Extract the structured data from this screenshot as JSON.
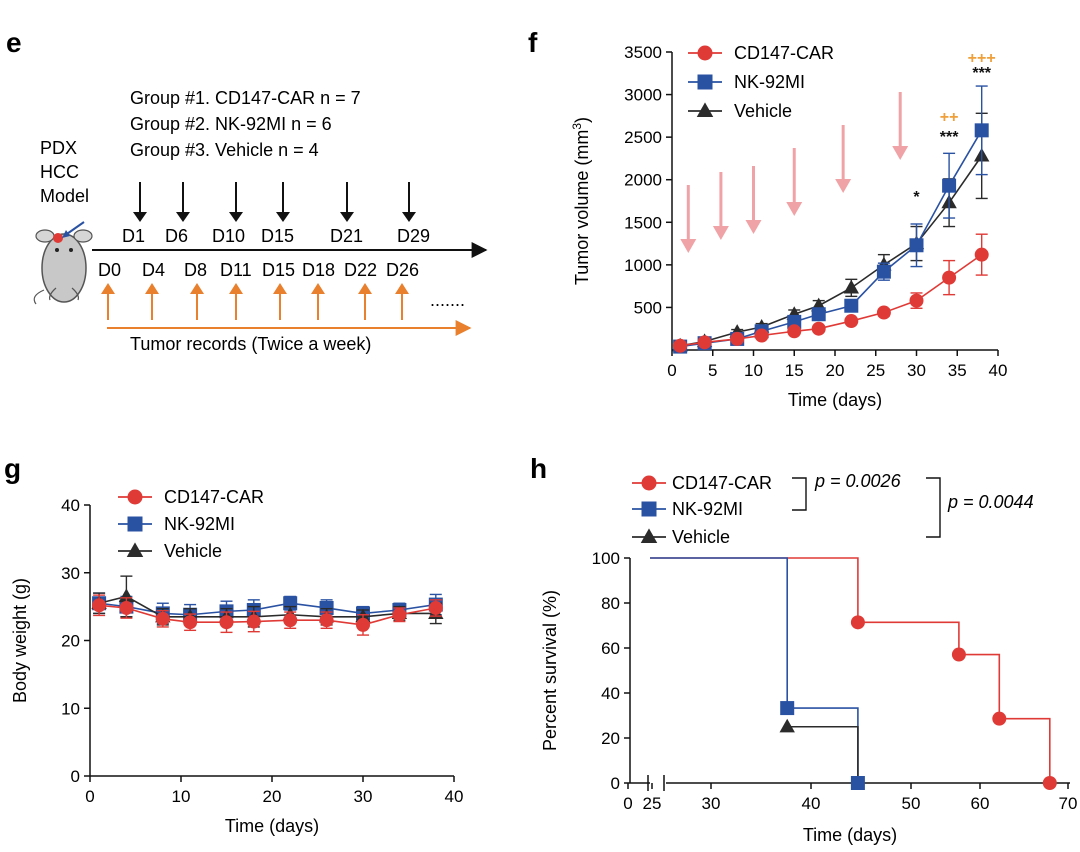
{
  "colors": {
    "car": "#e03a36",
    "nk": "#2a52a3",
    "vehicle": "#2b2b2b",
    "dose": "#f0a3a6",
    "record": "#e8802e",
    "sig_orange": "#f0a03a"
  },
  "panel_e": {
    "label": "e",
    "groups": [
      "Group #1. CD147-CAR n = 7",
      "Group #2. NK-92MI n = 6",
      "Group #3. Vehicle n = 4"
    ],
    "model_lines": [
      "PDX",
      "HCC",
      "Model"
    ],
    "dose_days": [
      "D1",
      "D6",
      "D10",
      "D15",
      "D21",
      "D29"
    ],
    "record_days": [
      "D0",
      "D4",
      "D8",
      "D11",
      "D15",
      "D18",
      "D22",
      "D26"
    ],
    "ellipsis": ".......",
    "record_caption": "Tumor records (Twice a week)"
  },
  "chart_data": [
    {
      "panel": "f",
      "type": "line",
      "ylabel": "Tumor volume (mm3)",
      "xlabel": "Time (days)",
      "xlim": [
        0,
        40
      ],
      "ylim": [
        0,
        3500
      ],
      "xticks": [
        "0",
        "5",
        "10",
        "15",
        "20",
        "25",
        "30",
        "35",
        "40"
      ],
      "yticks": [
        "500",
        "1000",
        "1500",
        "2000",
        "2500",
        "3000",
        "3500"
      ],
      "legend": [
        "CD147-CAR",
        "NK-92MI",
        "Vehicle"
      ],
      "legend_position": "top-left",
      "series": [
        {
          "name": "CD147-CAR",
          "x": [
            1,
            4,
            8,
            11,
            15,
            18,
            22,
            26,
            30,
            34,
            38
          ],
          "y": [
            50,
            90,
            130,
            170,
            220,
            250,
            340,
            440,
            580,
            850,
            1120
          ],
          "err": [
            20,
            20,
            20,
            20,
            30,
            30,
            30,
            40,
            90,
            200,
            240
          ]
        },
        {
          "name": "NK-92MI",
          "x": [
            1,
            4,
            8,
            11,
            15,
            18,
            22,
            26,
            30,
            34,
            38
          ],
          "y": [
            40,
            80,
            130,
            220,
            330,
            420,
            520,
            920,
            1230,
            1930,
            2580
          ],
          "err": [
            20,
            20,
            20,
            30,
            40,
            40,
            60,
            100,
            250,
            380,
            520
          ]
        },
        {
          "name": "Vehicle",
          "x": [
            1,
            4,
            8,
            11,
            15,
            18,
            22,
            26,
            30,
            34,
            38
          ],
          "y": [
            50,
            100,
            210,
            270,
            420,
            520,
            730,
            1000,
            1250,
            1730,
            2280
          ],
          "err": [
            20,
            20,
            30,
            40,
            50,
            60,
            100,
            120,
            200,
            280,
            500
          ]
        }
      ],
      "dose_arrow_days": [
        2,
        6,
        10,
        15,
        21,
        28
      ],
      "annotations": [
        {
          "x": 30,
          "text": "*",
          "color": "#111111",
          "level": 1
        },
        {
          "x": 34,
          "text": "***",
          "color": "#111111",
          "level": 1
        },
        {
          "x": 34,
          "text": "++",
          "color": "#f0a03a",
          "level": 2
        },
        {
          "x": 38,
          "text": "***",
          "color": "#111111",
          "level": 1
        },
        {
          "x": 38,
          "text": "+++",
          "color": "#f0a03a",
          "level": 2
        }
      ]
    },
    {
      "panel": "g",
      "type": "line",
      "ylabel": "Body weight (g)",
      "xlabel": "Time (days)",
      "xlim": [
        0,
        40
      ],
      "ylim": [
        0,
        40
      ],
      "xticks": [
        "0",
        "10",
        "20",
        "30",
        "40"
      ],
      "yticks": [
        "0",
        "10",
        "20",
        "30",
        "40"
      ],
      "legend": [
        "CD147-CAR",
        "NK-92MI",
        "Vehicle"
      ],
      "legend_position": "top-left",
      "series": [
        {
          "name": "NK-92MI",
          "x": [
            1,
            4,
            8,
            11,
            15,
            18,
            22,
            26,
            30,
            34,
            38
          ],
          "y": [
            25.5,
            25.0,
            24.0,
            23.8,
            24.3,
            24.5,
            25.5,
            24.8,
            24.0,
            24.5,
            25.3
          ],
          "err": [
            1.5,
            1.5,
            1.5,
            1.5,
            1.5,
            1.5,
            1.0,
            1.2,
            1.0,
            1.0,
            1.5
          ]
        },
        {
          "name": "Vehicle",
          "x": [
            1,
            4,
            8,
            11,
            15,
            18,
            22,
            26,
            30,
            34,
            38
          ],
          "y": [
            25.5,
            26.5,
            23.5,
            23.5,
            23.5,
            23.5,
            23.8,
            23.5,
            23.5,
            24.0,
            24.0
          ],
          "err": [
            1.5,
            3.0,
            1.2,
            1.2,
            1.2,
            1.5,
            1.2,
            1.2,
            1.0,
            1.0,
            1.5
          ]
        },
        {
          "name": "CD147-CAR",
          "x": [
            1,
            4,
            8,
            11,
            15,
            18,
            22,
            26,
            30,
            34,
            38
          ],
          "y": [
            25.2,
            24.8,
            23.2,
            22.7,
            22.7,
            22.8,
            23.0,
            23.0,
            22.3,
            23.8,
            24.8
          ],
          "err": [
            1.5,
            1.5,
            1.2,
            1.2,
            1.5,
            1.5,
            1.2,
            1.2,
            1.5,
            1.0,
            1.2
          ]
        }
      ]
    },
    {
      "panel": "h",
      "type": "line",
      "ylabel": "Percent survival (%)",
      "xlabel": "Time (days)",
      "xlim": [
        25,
        70
      ],
      "ylim": [
        0,
        100
      ],
      "xticks": [
        "0",
        "25",
        "30",
        "40",
        "50",
        "60",
        "70"
      ],
      "yticks": [
        "0",
        "20",
        "40",
        "60",
        "80",
        "100"
      ],
      "legend": [
        "CD147-CAR",
        "NK-92MI",
        "Vehicle"
      ],
      "legend_position": "top-left",
      "series": [
        {
          "name": "CD147-CAR",
          "steps": [
            [
              25,
              100
            ],
            [
              49,
              71.4
            ],
            [
              59,
              57.1
            ],
            [
              63,
              28.6
            ],
            [
              68,
              0
            ]
          ]
        },
        {
          "name": "NK-92MI",
          "steps": [
            [
              25,
              100
            ],
            [
              42,
              33.3
            ],
            [
              49,
              0
            ]
          ]
        },
        {
          "name": "Vehicle",
          "steps": [
            [
              42,
              25
            ],
            [
              49,
              0
            ]
          ]
        }
      ],
      "pvalues": [
        "p = 0.0026",
        "p = 0.0044"
      ]
    }
  ]
}
